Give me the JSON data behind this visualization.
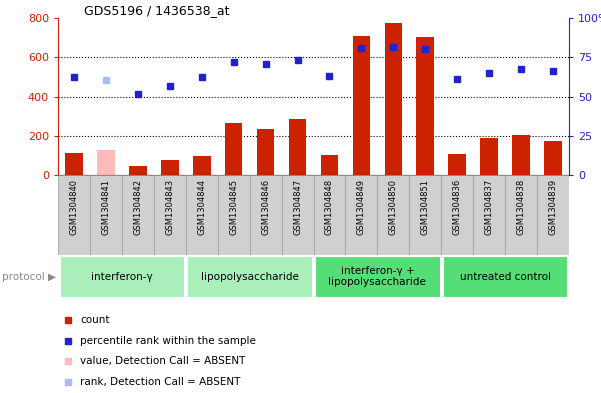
{
  "title": "GDS5196 / 1436538_at",
  "samples": [
    "GSM1304840",
    "GSM1304841",
    "GSM1304842",
    "GSM1304843",
    "GSM1304844",
    "GSM1304845",
    "GSM1304846",
    "GSM1304847",
    "GSM1304848",
    "GSM1304849",
    "GSM1304850",
    "GSM1304851",
    "GSM1304836",
    "GSM1304837",
    "GSM1304838",
    "GSM1304839"
  ],
  "counts": [
    110,
    125,
    45,
    75,
    95,
    265,
    235,
    285,
    100,
    710,
    775,
    705,
    105,
    190,
    205,
    175
  ],
  "counts_absent": [
    false,
    true,
    false,
    false,
    false,
    false,
    false,
    false,
    false,
    false,
    false,
    false,
    false,
    false,
    false,
    false
  ],
  "ranks": [
    62.5,
    60.6,
    51.9,
    56.9,
    62.5,
    71.9,
    70.6,
    73.1,
    63.1,
    80.6,
    81.3,
    80.0,
    61.3,
    65.0,
    67.5,
    66.3
  ],
  "ranks_absent": [
    false,
    true,
    false,
    false,
    false,
    false,
    false,
    false,
    false,
    false,
    false,
    false,
    false,
    false,
    false,
    false
  ],
  "ylim_left": [
    0,
    800
  ],
  "ylim_right": [
    0,
    100
  ],
  "yticks_left": [
    0,
    200,
    400,
    600,
    800
  ],
  "yticks_right": [
    0,
    25,
    50,
    75,
    100
  ],
  "protocol_groups": [
    {
      "label": "interferon-γ",
      "start": 0,
      "end": 4,
      "color": "#aaeebb"
    },
    {
      "label": "lipopolysaccharide",
      "start": 4,
      "end": 8,
      "color": "#aaeebb"
    },
    {
      "label": "interferon-γ +\nlipopolysaccharide",
      "start": 8,
      "end": 12,
      "color": "#55dd77"
    },
    {
      "label": "untreated control",
      "start": 12,
      "end": 16,
      "color": "#55dd77"
    }
  ],
  "bar_color_present": "#cc2200",
  "bar_color_absent": "#ffbbbb",
  "dot_color_present": "#2222cc",
  "dot_color_absent": "#aabbff",
  "plot_bg": "#ffffff",
  "left_tick_color": "#cc2200",
  "right_tick_color": "#2222cc",
  "xticklabel_bg": "#cccccc",
  "border_color": "#888888"
}
